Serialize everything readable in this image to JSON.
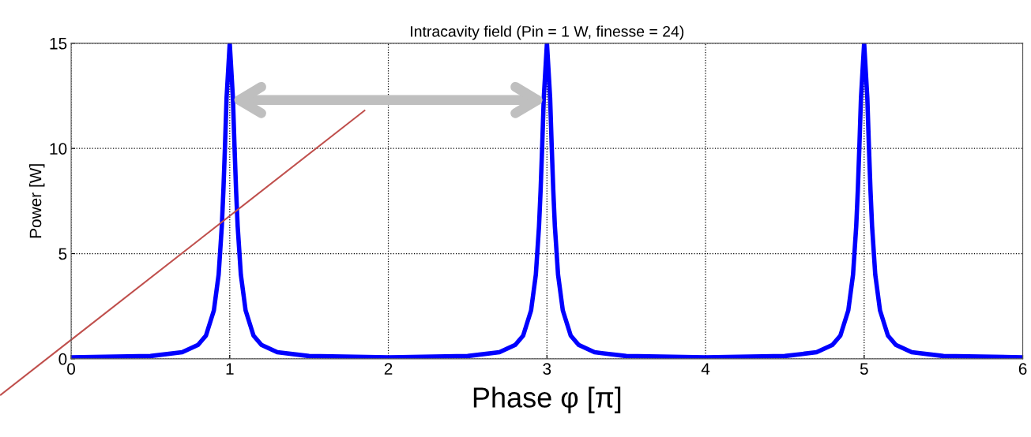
{
  "chart_data": {
    "type": "line",
    "title": "Intracavity field (Pin = 1 W, finesse = 24)",
    "xlabel": "Phase φ [π]",
    "ylabel": "Power [W]",
    "x": [
      0,
      0.5,
      0.7,
      0.8,
      0.85,
      0.9,
      0.93,
      0.95,
      0.96,
      0.97,
      0.98,
      1,
      1.02,
      1.03,
      1.04,
      1.05,
      1.07,
      1.1,
      1.15,
      1.2,
      1.3,
      1.5,
      2,
      2.5,
      2.7,
      2.8,
      2.85,
      2.9,
      2.93,
      2.95,
      2.96,
      2.97,
      2.98,
      3,
      3.02,
      3.03,
      3.04,
      3.05,
      3.07,
      3.1,
      3.15,
      3.2,
      3.3,
      3.5,
      4,
      4.5,
      4.7,
      4.8,
      4.85,
      4.9,
      4.93,
      4.95,
      4.96,
      4.97,
      4.98,
      5,
      5.02,
      5.03,
      5.04,
      5.05,
      5.07,
      5.1,
      5.15,
      5.2,
      5.3,
      5.5,
      6
    ],
    "series": [
      {
        "color": "#0000ff",
        "values": [
          0.07,
          0.13,
          0.31,
          0.66,
          1.1,
          2.3,
          4.0,
          6.3,
          8.0,
          10.1,
          12.4,
          15,
          12.4,
          10.1,
          8.0,
          6.3,
          4.0,
          2.3,
          1.1,
          0.66,
          0.31,
          0.13,
          0.07,
          0.13,
          0.31,
          0.66,
          1.1,
          2.3,
          4.0,
          6.3,
          8.0,
          10.1,
          12.4,
          15,
          12.4,
          10.1,
          8.0,
          6.3,
          4.0,
          2.3,
          1.1,
          0.66,
          0.31,
          0.13,
          0.07,
          0.13,
          0.31,
          0.66,
          1.1,
          2.3,
          4.0,
          6.3,
          8.0,
          10.1,
          12.4,
          15,
          12.4,
          10.1,
          8.0,
          6.3,
          4.0,
          2.3,
          1.1,
          0.66,
          0.31,
          0.13,
          0.07
        ]
      },
      {
        "type": "line",
        "color": "#c0504d",
        "x": [
          0,
          1.85
        ],
        "values": [
          0.9,
          11.8
        ]
      }
    ],
    "xlim": [
      0,
      6
    ],
    "xticks": [
      0,
      1,
      2,
      3,
      4,
      5,
      6
    ],
    "ylim": [
      0,
      15
    ],
    "yticks": [
      0,
      5,
      10,
      15
    ],
    "grid": true,
    "line_style": "solid",
    "marker": "none"
  }
}
